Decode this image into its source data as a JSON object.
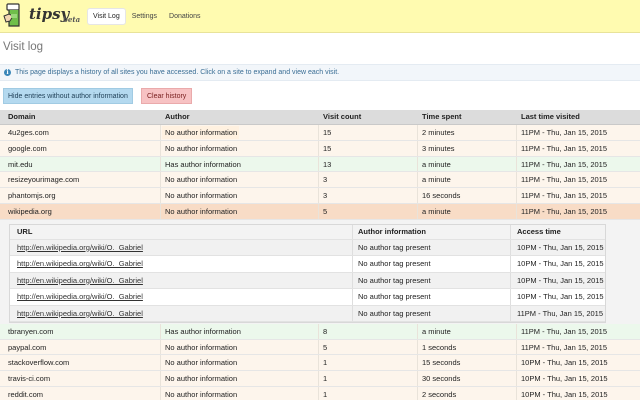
{
  "app": {
    "brand": "tipsy",
    "brand_sub": "beta"
  },
  "nav": {
    "items": [
      {
        "label": "Visit Log",
        "active": true
      },
      {
        "label": "Settings",
        "active": false
      },
      {
        "label": "Donations",
        "active": false
      }
    ]
  },
  "page": {
    "title": "Visit log",
    "info": "This page displays a history of all sites you have accessed. Click on a site to expand and view each visit.",
    "hide_button": "Hide entries without author information",
    "clear_button": "Clear history"
  },
  "visits": {
    "headers": {
      "domain": "Domain",
      "author": "Author",
      "count": "Visit count",
      "time": "Time spent",
      "last": "Last time visited"
    },
    "rows_before": [
      {
        "domain": "4u2ges.com",
        "author": "No author information",
        "count": "15",
        "time": "2 minutes",
        "last": "11PM - Thu, Jan 15, 2015"
      },
      {
        "domain": "google.com",
        "author": "No author information",
        "count": "15",
        "time": "3 minutes",
        "last": "11PM - Thu, Jan 15, 2015"
      },
      {
        "domain": "mit.edu",
        "author": "Has author information",
        "count": "13",
        "time": "a minute",
        "last": "11PM - Thu, Jan 15, 2015"
      },
      {
        "domain": "resizeyourimage.com",
        "author": "No author information",
        "count": "3",
        "time": "a minute",
        "last": "11PM - Thu, Jan 15, 2015"
      },
      {
        "domain": "phantomjs.org",
        "author": "No author information",
        "count": "3",
        "time": "16 seconds",
        "last": "11PM - Thu, Jan 15, 2015"
      },
      {
        "domain": "wikipedia.org",
        "author": "No author information",
        "count": "5",
        "time": "a minute",
        "last": "11PM - Thu, Jan 15, 2015"
      }
    ],
    "rows_after": [
      {
        "domain": "tbranyen.com",
        "author": "Has author information",
        "count": "8",
        "time": "a minute",
        "last": "11PM - Thu, Jan 15, 2015"
      },
      {
        "domain": "paypal.com",
        "author": "No author information",
        "count": "5",
        "time": "1 seconds",
        "last": "11PM - Thu, Jan 15, 2015"
      },
      {
        "domain": "stackoverflow.com",
        "author": "No author information",
        "count": "1",
        "time": "15 seconds",
        "last": "10PM - Thu, Jan 15, 2015"
      },
      {
        "domain": "travis-ci.com",
        "author": "No author information",
        "count": "1",
        "time": "30 seconds",
        "last": "10PM - Thu, Jan 15, 2015"
      },
      {
        "domain": "reddit.com",
        "author": "No author information",
        "count": "1",
        "time": "2 seconds",
        "last": "10PM - Thu, Jan 15, 2015"
      }
    ]
  },
  "details": {
    "headers": {
      "url": "URL",
      "author": "Author information",
      "access": "Access time"
    },
    "rows": [
      {
        "url": "http://en.wikipedia.org/wiki/O._Gabriel",
        "author": "No author tag present",
        "access": "10PM - Thu, Jan 15, 2015"
      },
      {
        "url": "http://en.wikipedia.org/wiki/O._Gabriel",
        "author": "No author tag present",
        "access": "10PM - Thu, Jan 15, 2015"
      },
      {
        "url": "http://en.wikipedia.org/wiki/O._Gabriel",
        "author": "No author tag present",
        "access": "10PM - Thu, Jan 15, 2015"
      },
      {
        "url": "http://en.wikipedia.org/wiki/O._Gabriel",
        "author": "No author tag present",
        "access": "10PM - Thu, Jan 15, 2015"
      },
      {
        "url": "http://en.wikipedia.org/wiki/O._Gabriel",
        "author": "No author tag present",
        "access": "11PM - Thu, Jan 15, 2015"
      }
    ]
  },
  "colors": {
    "topbar": "#fffbb0",
    "no_author_row": "#fdf5ec",
    "has_author_row": "#ecf8ec",
    "selected_row": "#f8dcc6",
    "hide_button": "#b4d9ef",
    "clear_button": "#f7c2c3"
  },
  "icons": {
    "logo": "tip-jar-icon",
    "info": "info-icon"
  }
}
